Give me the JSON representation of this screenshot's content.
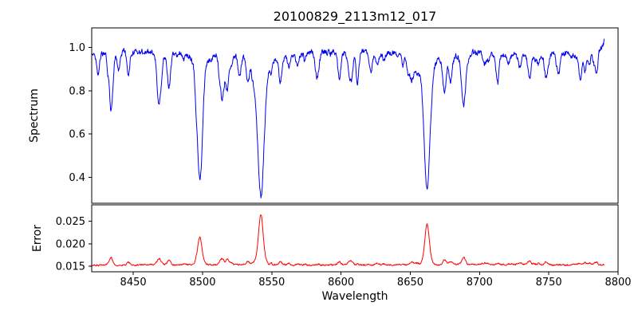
{
  "chart_data": {
    "type": "line",
    "title": "20100829_2113m12_017",
    "xlabel": "Wavelength",
    "xlim": [
      8420,
      8800
    ],
    "xticks": [
      "8450",
      "8500",
      "8550",
      "8600",
      "8650",
      "8700",
      "8750",
      "8800"
    ],
    "x_data_range": [
      8420,
      8790
    ],
    "grid": false,
    "legend": "none",
    "panels": [
      {
        "name": "spectrum",
        "ylabel": "Spectrum",
        "line_color": "#0000ee",
        "ylim": [
          0.28,
          1.09
        ],
        "yticks": [
          "0.4",
          "0.6",
          "0.8",
          "1.0"
        ],
        "continuum_level": 0.975,
        "noise_amplitude": 0.011,
        "end_spike_height": 0.055,
        "absorption_lines": [
          {
            "center": 8424.5,
            "depth": 0.1,
            "width": 1.0
          },
          {
            "center": 8434.0,
            "depth": 0.27,
            "width": 1.3
          },
          {
            "center": 8439.5,
            "depth": 0.08,
            "width": 1.0
          },
          {
            "center": 8446.5,
            "depth": 0.1,
            "width": 1.0
          },
          {
            "center": 8468.5,
            "depth": 0.17,
            "width": 1.4
          },
          {
            "center": 8498.0,
            "depth": 0.525,
            "width": 1.9
          },
          {
            "center": 8514.1,
            "depth": 0.185,
            "width": 1.3
          },
          {
            "center": 8518.1,
            "depth": 0.12,
            "width": 1.0
          },
          {
            "center": 8526.7,
            "depth": 0.09,
            "width": 1.0
          },
          {
            "center": 8542.1,
            "depth": 0.665,
            "width": 2.3
          },
          {
            "center": 8582.3,
            "depth": 0.11,
            "width": 1.1
          },
          {
            "center": 8598.8,
            "depth": 0.13,
            "width": 1.1
          },
          {
            "center": 8611.8,
            "depth": 0.11,
            "width": 1.1
          },
          {
            "center": 8621.6,
            "depth": 0.09,
            "width": 1.0
          },
          {
            "center": 8648.5,
            "depth": 0.09,
            "width": 1.0
          },
          {
            "center": 8662.1,
            "depth": 0.615,
            "width": 2.1
          },
          {
            "center": 8674.7,
            "depth": 0.16,
            "width": 1.2
          },
          {
            "center": 8688.6,
            "depth": 0.235,
            "width": 1.4
          },
          {
            "center": 8712.7,
            "depth": 0.09,
            "width": 1.0
          },
          {
            "center": 8736.0,
            "depth": 0.11,
            "width": 1.1
          },
          {
            "center": 8757.2,
            "depth": 0.09,
            "width": 1.0
          },
          {
            "center": 8772.9,
            "depth": 0.08,
            "width": 1.0
          }
        ]
      },
      {
        "name": "error",
        "ylabel": "Error",
        "line_color": "#ff0000",
        "ylim": [
          0.0138,
          0.0286
        ],
        "yticks": [
          "0.015",
          "0.020",
          "0.025"
        ],
        "baseline_level": 0.0153,
        "noise_amplitude": 0.00025,
        "peaks": [
          {
            "center": 8434.0,
            "height": 0.0017,
            "width": 1.3
          },
          {
            "center": 8446.5,
            "height": 0.0007,
            "width": 1.0
          },
          {
            "center": 8468.5,
            "height": 0.0009,
            "width": 1.4
          },
          {
            "center": 8498.0,
            "height": 0.0058,
            "width": 1.6
          },
          {
            "center": 8514.1,
            "height": 0.0013,
            "width": 1.2
          },
          {
            "center": 8518.1,
            "height": 0.0009,
            "width": 1.0
          },
          {
            "center": 8542.1,
            "height": 0.0112,
            "width": 1.8
          },
          {
            "center": 8598.8,
            "height": 0.0007,
            "width": 1.1
          },
          {
            "center": 8662.1,
            "height": 0.0091,
            "width": 1.7
          },
          {
            "center": 8674.7,
            "height": 0.0012,
            "width": 1.2
          },
          {
            "center": 8688.6,
            "height": 0.0016,
            "width": 1.3
          },
          {
            "center": 8736.0,
            "height": 0.0008,
            "width": 1.1
          }
        ]
      }
    ]
  }
}
